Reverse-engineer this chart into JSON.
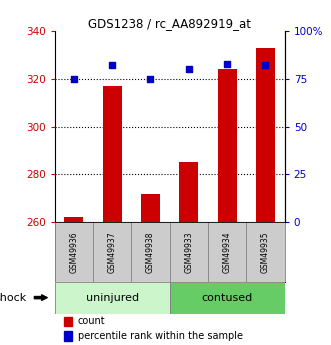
{
  "title": "GDS1238 / rc_AA892919_at",
  "samples": [
    "GSM49936",
    "GSM49937",
    "GSM49938",
    "GSM49933",
    "GSM49934",
    "GSM49935"
  ],
  "bar_values": [
    262,
    317,
    272,
    285,
    324,
    333
  ],
  "blue_pcts": [
    75,
    82,
    75,
    80,
    83,
    82
  ],
  "bar_color": "#cc0000",
  "blue_color": "#0000cc",
  "ymin": 260,
  "ymax": 340,
  "yticks": [
    260,
    280,
    300,
    320,
    340
  ],
  "right_yticks": [
    0,
    25,
    50,
    75,
    100
  ],
  "right_yticklabels": [
    "0",
    "25",
    "50",
    "75",
    "100%"
  ],
  "gridlines": [
    280,
    300,
    320
  ],
  "group_color_uninjured": "#ccf5cc",
  "group_color_contused": "#66cc66",
  "sample_row_color": "#cccccc",
  "shock_label": "shock",
  "legend_count": "count",
  "legend_pct": "percentile rank within the sample"
}
